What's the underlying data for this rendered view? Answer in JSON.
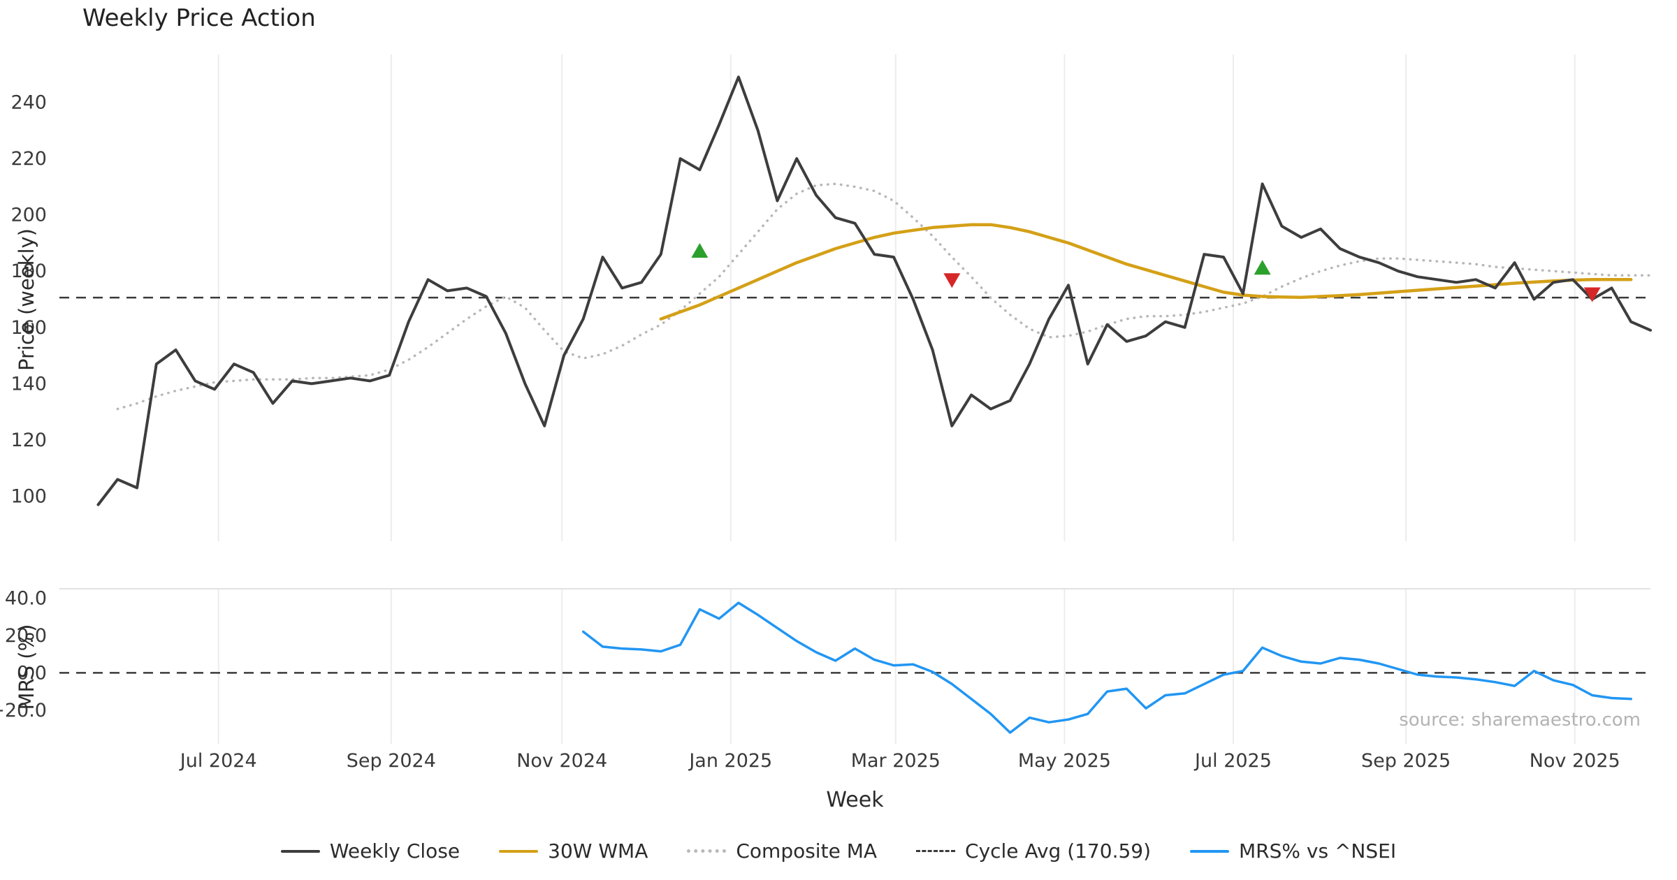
{
  "title": "Weekly Price Action",
  "source_note": "source: sharemaestro.com",
  "chart_data": {
    "type": "line",
    "title": "Weekly Price Action",
    "xlabel": "Week",
    "x_unit": "week_index",
    "xlim": [
      -2,
      80
    ],
    "grid": "vertical-only",
    "legend_position": "bottom-center",
    "xticks": [
      {
        "week": 6.2,
        "label": "Jul 2024"
      },
      {
        "week": 15.1,
        "label": "Sep 2024"
      },
      {
        "week": 23.9,
        "label": "Nov 2024"
      },
      {
        "week": 32.6,
        "label": "Jan 2025"
      },
      {
        "week": 41.1,
        "label": "Mar 2025"
      },
      {
        "week": 49.8,
        "label": "May 2025"
      },
      {
        "week": 58.5,
        "label": "Jul 2025"
      },
      {
        "week": 67.4,
        "label": "Sep 2025"
      },
      {
        "week": 76.1,
        "label": "Nov 2025"
      }
    ],
    "panels": [
      {
        "name": "price",
        "ylabel": "Price (weekly)",
        "ylim": [
          84,
          257
        ],
        "yticks": [
          100,
          120,
          140,
          160,
          180,
          200,
          220,
          240
        ],
        "ytick_labels": [
          "100",
          "120",
          "140",
          "160",
          "180",
          "200",
          "220",
          "240"
        ],
        "hline": {
          "label": "Cycle Avg (170.59)",
          "value": 170.59,
          "style": "dashed",
          "color": "#3a3a3a"
        },
        "series": [
          {
            "name": "Composite MA",
            "color": "#b8b8b8",
            "style": "dotted",
            "width": 3.5,
            "start_week": 1,
            "values": [
              131,
              133,
              135.5,
              137.5,
              139,
              140.5,
              141,
              141.5,
              141.5,
              141.5,
              142,
              142,
              142.5,
              143,
              145,
              148.5,
              153,
              158,
              163,
              167.5,
              171,
              167,
              159,
              151.5,
              149,
              150.5,
              153.5,
              157.5,
              161,
              166,
              172,
              178,
              186,
              194,
              202,
              207.5,
              210.5,
              211,
              210,
              208.5,
              205,
              199,
              192.5,
              185,
              178,
              170.5,
              164.5,
              159.5,
              156.5,
              157,
              158.5,
              161,
              163,
              164,
              164,
              164.5,
              165.5,
              167,
              168.5,
              171,
              174.5,
              177.5,
              180,
              182,
              183.5,
              184.5,
              184.5,
              184,
              183.5,
              183,
              182.5,
              181.5,
              181,
              180.5,
              180,
              179.5,
              179,
              178.5,
              178.5,
              178.5
            ]
          },
          {
            "name": "30W WMA",
            "color": "#d4a017",
            "style": "solid",
            "width": 4.5,
            "start_week": 29,
            "values": [
              163,
              165.5,
              168,
              171,
              174,
              177,
              180,
              183,
              185.5,
              188,
              190,
              192,
              193.5,
              194.5,
              195.5,
              196,
              196.5,
              196.5,
              195.5,
              194,
              192,
              190,
              187.5,
              185,
              182.5,
              180.5,
              178.5,
              176.5,
              174.5,
              172.5,
              171.5,
              171,
              170.8,
              170.7,
              171,
              171.3,
              171.7,
              172.2,
              172.7,
              173.2,
              173.7,
              174.2,
              174.7,
              175.2,
              175.7,
              176.1,
              176.5,
              176.8,
              177,
              177,
              177
            ]
          },
          {
            "name": "Weekly Close",
            "color": "#3d3d3d",
            "style": "solid",
            "width": 4,
            "start_week": 0,
            "values": [
              97,
              106,
              103,
              147,
              152,
              141,
              138,
              147,
              144,
              133,
              141,
              140,
              141,
              142,
              141,
              143,
              162,
              177,
              173,
              174,
              171,
              158,
              140,
              125,
              150,
              163,
              185,
              174,
              176,
              186,
              220,
              216,
              232,
              249,
              230,
              205,
              220,
              207,
              199,
              197,
              186,
              185,
              170,
              152,
              125,
              136,
              131,
              134,
              147,
              163,
              175,
              147,
              161,
              155,
              157,
              162,
              160,
              186,
              185,
              172,
              211,
              196,
              192,
              195,
              188,
              185,
              183,
              180,
              178,
              177,
              176,
              177,
              174,
              183,
              170,
              176,
              177,
              170,
              174,
              162,
              159
            ]
          }
        ],
        "signals": [
          {
            "type": "buy",
            "week": 31,
            "value": 187
          },
          {
            "type": "sell",
            "week": 44,
            "value": 177
          },
          {
            "type": "buy",
            "week": 60,
            "value": 181
          },
          {
            "type": "sell",
            "week": 77,
            "value": 172
          }
        ]
      },
      {
        "name": "mrs",
        "ylabel": "MRS (%)",
        "ylim": [
          -38,
          45
        ],
        "yticks": [
          -20,
          0,
          20,
          40
        ],
        "ytick_labels": [
          "−20.0",
          "0.0",
          "20.0",
          "40.0"
        ],
        "hline": {
          "label": "",
          "value": 0,
          "style": "dashed",
          "color": "#3a3a3a"
        },
        "series": [
          {
            "name": "MRS% vs ^NSEI",
            "color": "#2196f3",
            "style": "solid",
            "width": 3.5,
            "start_week": 25,
            "values": [
              22,
              14,
              13,
              12.5,
              11.5,
              15,
              34,
              29,
              37.5,
              31,
              24,
              17,
              11,
              6.5,
              13,
              7,
              4,
              4.5,
              0.5,
              -6,
              -14,
              -22,
              -32,
              -24,
              -26.5,
              -25,
              -22,
              -10,
              -8.5,
              -19,
              -12,
              -11,
              -6,
              -1,
              1,
              13.5,
              9,
              6,
              5,
              8,
              7,
              5,
              2,
              -1,
              -2,
              -2.5,
              -3.5,
              -5,
              -7,
              1,
              -4,
              -6.5,
              -12,
              -13.5,
              -14
            ]
          }
        ],
        "signals": []
      }
    ],
    "legend": [
      {
        "label": "Weekly Close",
        "color": "#3d3d3d",
        "style": "solid"
      },
      {
        "label": "30W WMA",
        "color": "#d4a017",
        "style": "solid"
      },
      {
        "label": "Composite MA",
        "color": "#b8b8b8",
        "style": "dotted"
      },
      {
        "label": "Cycle Avg (170.59)",
        "color": "#3a3a3a",
        "style": "dashed"
      },
      {
        "label": "MRS% vs ^NSEI",
        "color": "#2196f3",
        "style": "solid"
      }
    ],
    "signal_colors": {
      "buy": "#2ca02c",
      "sell": "#d62728"
    },
    "cycle_avg": 170.59
  }
}
